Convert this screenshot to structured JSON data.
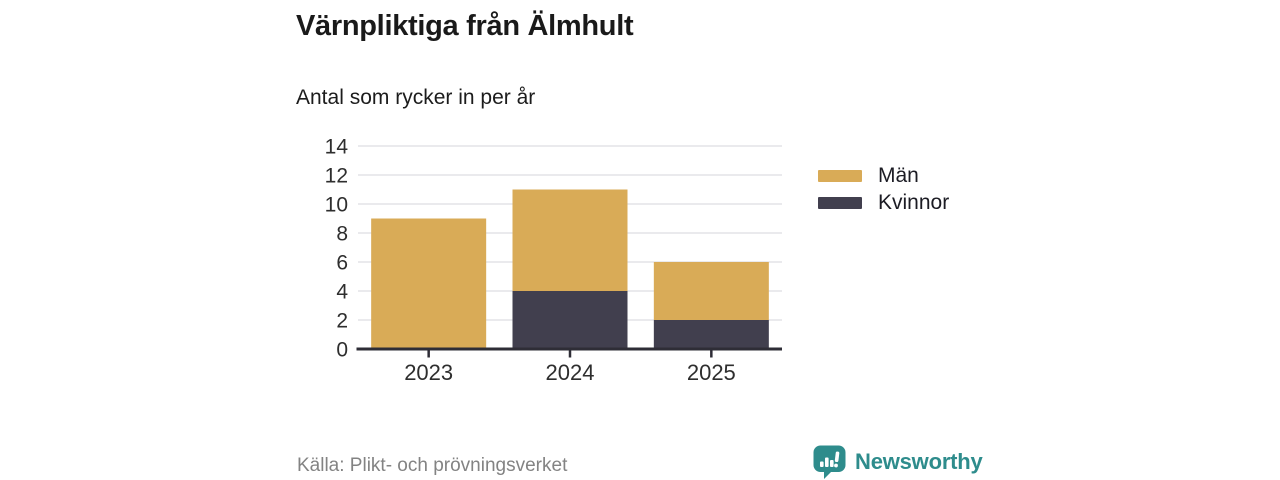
{
  "title": "Värnpliktiga från Älmhult",
  "subtitle": "Antal som rycker in per år",
  "source": "Källa: Plikt- och prövningsverket",
  "brand": {
    "name": "Newsworthy",
    "color": "#2e8c8c",
    "icon": "bar-chart-speech-bubble-icon"
  },
  "colors": {
    "men": "#d9ab57",
    "women": "#413f4e",
    "grid": "#e4e4e7",
    "axis": "#2e2d36",
    "tick_label": "#2e2e2e",
    "title_text": "#1a1a1a",
    "source_text": "#838383"
  },
  "legend": {
    "items": [
      {
        "label": "Män",
        "color": "#d9ab57"
      },
      {
        "label": "Kvinnor",
        "color": "#413f4e"
      }
    ]
  },
  "chart_data": {
    "type": "bar",
    "stacked": true,
    "title": "Värnpliktiga från Älmhult",
    "subtitle": "Antal som rycker in per år",
    "xlabel": "",
    "ylabel": "",
    "categories": [
      "2023",
      "2024",
      "2025"
    ],
    "series": [
      {
        "name": "Män",
        "color": "#d9ab57",
        "values": [
          9,
          7,
          4
        ]
      },
      {
        "name": "Kvinnor",
        "color": "#413f4e",
        "values": [
          0,
          4,
          2
        ]
      }
    ],
    "stack_order": [
      "Kvinnor",
      "Män"
    ],
    "totals": [
      9,
      11,
      6
    ],
    "ylim": [
      0,
      14
    ],
    "yticks": [
      0,
      2,
      4,
      6,
      8,
      10,
      12,
      14
    ],
    "grid": true,
    "legend_position": "right"
  }
}
